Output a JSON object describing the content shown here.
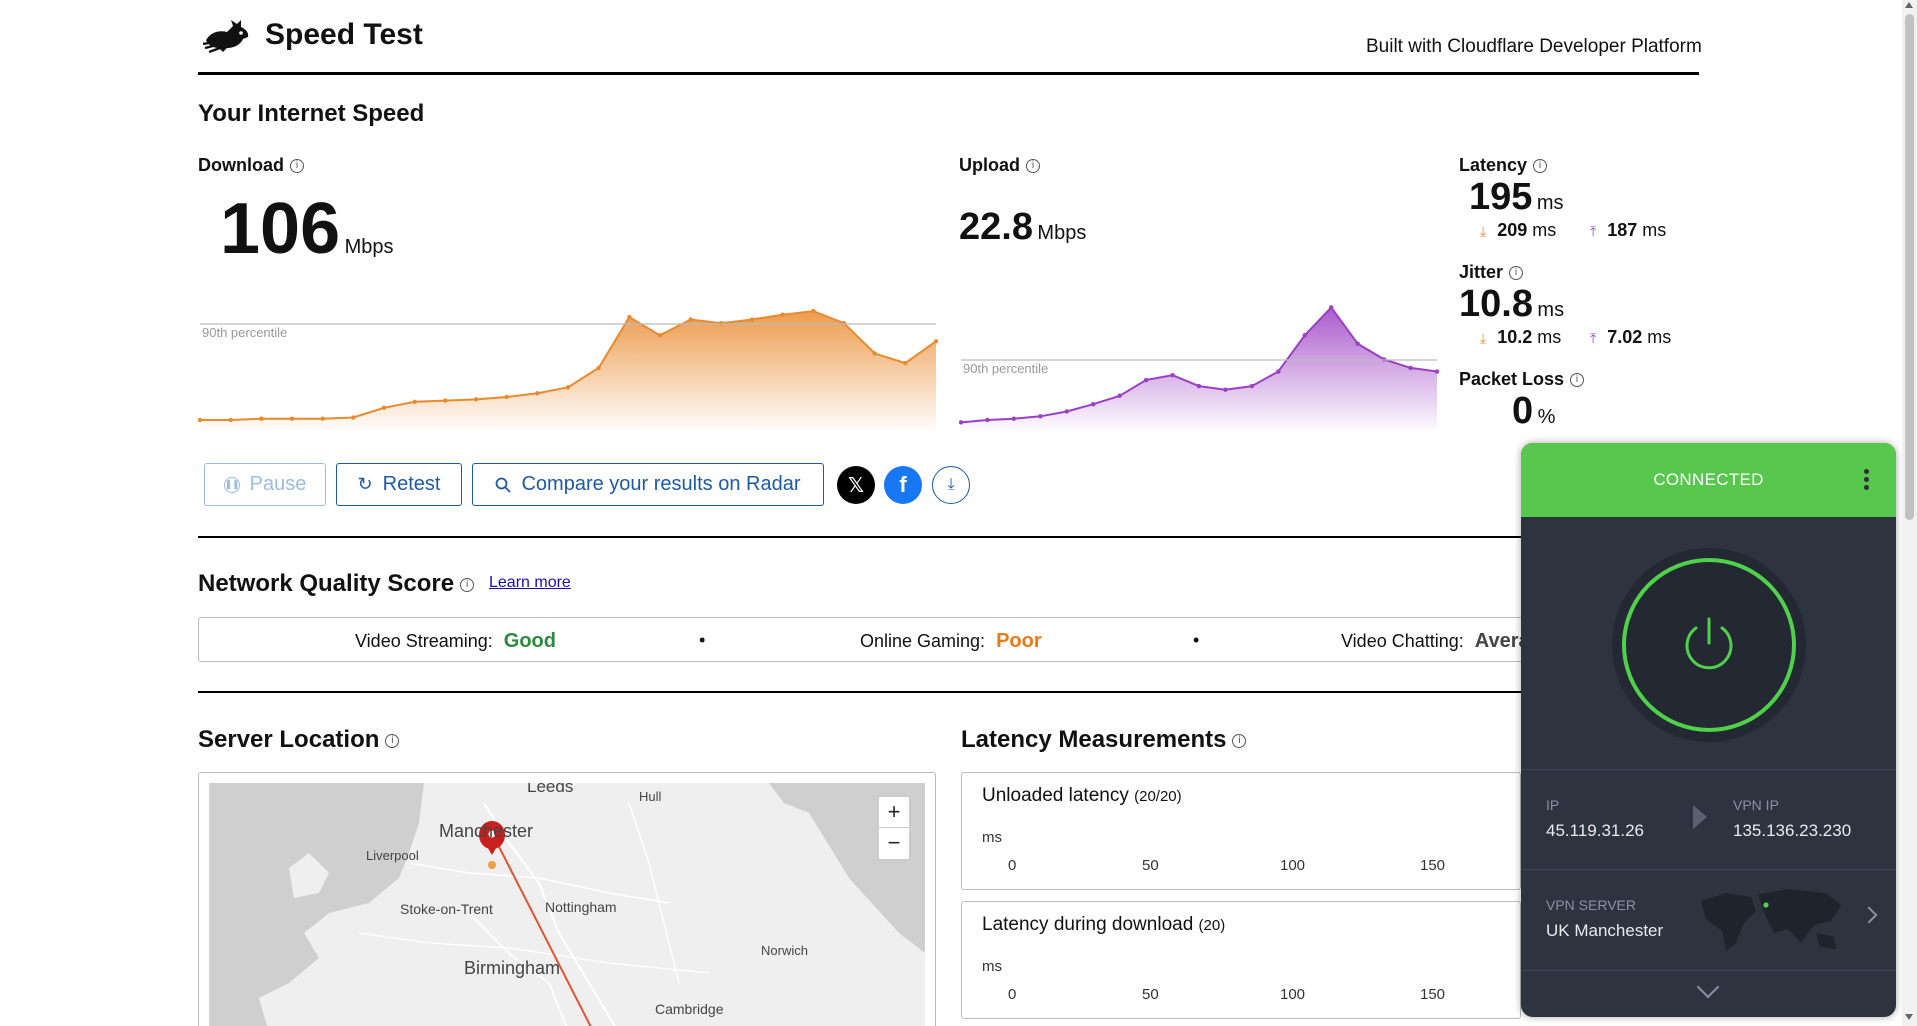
{
  "header": {
    "title": "Speed Test",
    "built_with": "Built with Cloudflare Developer Platform"
  },
  "speed": {
    "section_title": "Your Internet Speed",
    "download": {
      "label": "Download",
      "value": "106",
      "unit": "Mbps",
      "percentile_label": "90th percentile"
    },
    "upload": {
      "label": "Upload",
      "value": "22.8",
      "unit": "Mbps",
      "percentile_label": "90th percentile"
    },
    "latency": {
      "label": "Latency",
      "value": "195",
      "unit": "ms",
      "down": "209",
      "up": "187",
      "sub_unit": "ms"
    },
    "jitter": {
      "label": "Jitter",
      "value": "10.8",
      "unit": "ms",
      "down": "10.2",
      "up": "7.02",
      "sub_unit": "ms"
    },
    "packet_loss": {
      "label": "Packet Loss",
      "value": "0",
      "unit": "%"
    }
  },
  "actions": {
    "pause": "Pause",
    "retest": "Retest",
    "compare": "Compare your results on Radar"
  },
  "network_quality": {
    "title": "Network Quality Score",
    "learn_more": "Learn more",
    "video_streaming_label": "Video Streaming:",
    "video_streaming_value": "Good",
    "online_gaming_label": "Online Gaming:",
    "online_gaming_value": "Poor",
    "video_chatting_label": "Video Chatting:",
    "video_chatting_value": "Avera"
  },
  "server_location": {
    "title": "Server Location",
    "map_labels": [
      "Leeds",
      "Hull",
      "Manchester",
      "Liverpool",
      "Stoke-on-Trent",
      "Nottingham",
      "Norwich",
      "Birmingham",
      "Cambridge"
    ]
  },
  "latency_measurements": {
    "title": "Latency Measurements",
    "unloaded": {
      "title": "Unloaded latency",
      "count": "(20/20)"
    },
    "during_download": {
      "title": "Latency during download",
      "count": "(20)"
    },
    "axis_unit": "ms",
    "ticks": [
      "0",
      "50",
      "100",
      "150"
    ]
  },
  "vpn": {
    "status": "CONNECTED",
    "ip_label": "IP",
    "ip_value": "45.119.31.26",
    "vpn_ip_label": "VPN IP",
    "vpn_ip_value": "135.136.23.230",
    "server_label": "VPN SERVER",
    "server_value": "UK Manchester"
  },
  "colors": {
    "download": "#ea8a2e",
    "upload": "#9b3fc4",
    "accent_blue": "#1c5aa8",
    "vpn_green": "#57c84d",
    "vpn_bg": "#2e3340"
  },
  "chart_data": [
    {
      "type": "area",
      "series": [
        {
          "name": "Download",
          "values": [
            5,
            5,
            6,
            6,
            6,
            7,
            15,
            20,
            21,
            22,
            24,
            27,
            32,
            48,
            90,
            75,
            88,
            85,
            88,
            92,
            95,
            85,
            60,
            52,
            70
          ]
        }
      ],
      "reference_line": "90th percentile"
    },
    {
      "type": "area",
      "series": [
        {
          "name": "Upload",
          "values": [
            3,
            5,
            6,
            8,
            12,
            18,
            25,
            38,
            42,
            33,
            30,
            33,
            45,
            75,
            98,
            68,
            55,
            48,
            45
          ]
        }
      ],
      "reference_line": "90th percentile"
    }
  ]
}
